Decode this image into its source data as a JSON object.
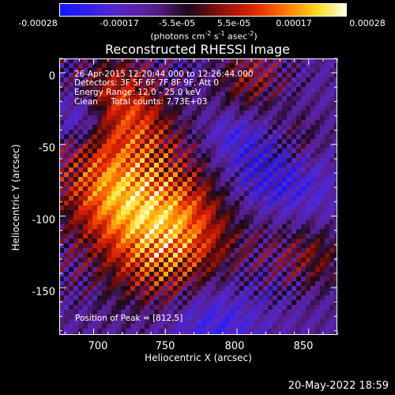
{
  "colorbar": {
    "ticks": [
      "-0.00028",
      "-0.00017",
      "-5.5e-05",
      "5.5e-05",
      "0.00017",
      "0.00028"
    ],
    "units_text": "(photons cm",
    "units_exp1": "-2",
    "units_mid": " s",
    "units_exp2": "-1",
    "units_mid2": " asec",
    "units_exp3": "-2",
    "units_end": ")"
  },
  "chart_data": {
    "type": "heatmap",
    "title": "Reconstructed RHESSI Image",
    "xlabel": "Heliocentric X (arcsec)",
    "ylabel": "Heliocentric Y (arcsec)",
    "xlim": [
      676,
      870
    ],
    "ylim": [
      -183,
      10
    ],
    "xticks": [
      700,
      750,
      800,
      850
    ],
    "yticks": [
      0,
      -50,
      -100,
      -150
    ],
    "zlim": [
      -0.00028,
      0.00028
    ],
    "colormap": "RHESSI (blue-purple-red-orange-yellow-white)",
    "peak_position": [
      812,
      5
    ],
    "annotations": [
      "26-Apr-2015 12:20:44.000 to 12:26:44.000",
      "Detectors: 3F 5F 6F 7F 8F 9F, Att 0",
      "Energy Range: 12.0 - 25.0 keV",
      "Clean     Total counts: 7.73E+03"
    ],
    "peak_label": "Position of Peak = [812,5]"
  },
  "footer": {
    "timestamp": "20-May-2022 18:59"
  }
}
